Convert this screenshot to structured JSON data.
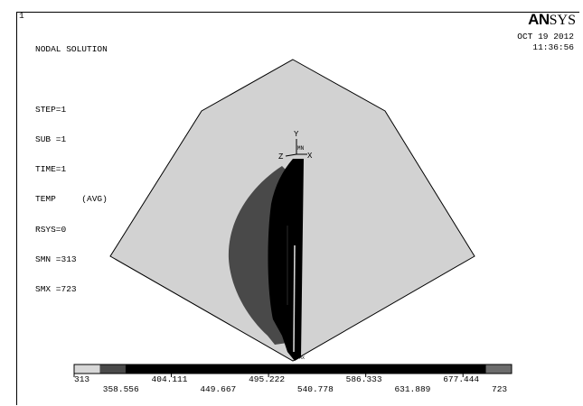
{
  "window_number": "1",
  "logo": {
    "brand_main": "AN",
    "brand_tail": "SYS"
  },
  "timestamp": {
    "date": "OCT 19 2012",
    "time": "11:36:56"
  },
  "solution_info": [
    "NODAL SOLUTION",
    "",
    "STEP=1",
    "SUB =1",
    "TIME=1",
    "TEMP     (AVG)",
    "RSYS=0",
    "SMN =313",
    "SMX =723"
  ],
  "triad": {
    "y_label": "Y",
    "z_label": "Z",
    "x_label": "X",
    "mn_label": "MN",
    "mx_label": "MX"
  },
  "colors": {
    "background": "#ffffff",
    "model_light": "#d2d2d2",
    "model_dark": "#494949",
    "model_black": "#000000"
  },
  "legend": {
    "labels_top": [
      "313",
      "404.111",
      "495.222",
      "586.333",
      "677.444"
    ],
    "labels_bottom": [
      "358.556",
      "449.667",
      "540.778",
      "631.889",
      "723"
    ],
    "band_colors": [
      "#d8d8d8",
      "#4a4a4a",
      "#000000",
      "#000000",
      "#000000",
      "#000000",
      "#000000",
      "#000000",
      "#000000",
      "#000000",
      "#000000",
      "#000000",
      "#000000",
      "#000000",
      "#000000",
      "#000000",
      "#6c6c6c"
    ]
  }
}
